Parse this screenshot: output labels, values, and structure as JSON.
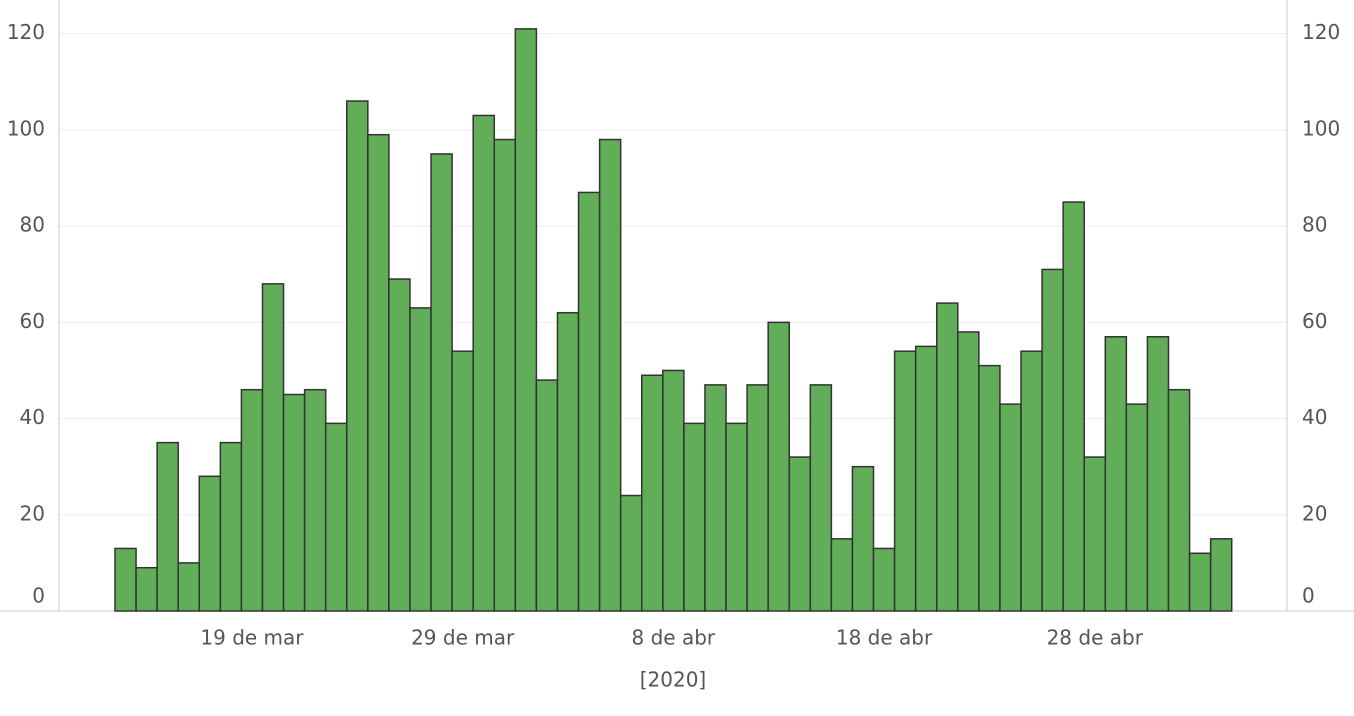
{
  "chart_data": {
    "type": "bar",
    "xlabel": "[2020]",
    "categories": [
      null,
      null,
      null,
      null,
      null,
      null,
      "19 de mar",
      null,
      null,
      null,
      null,
      null,
      null,
      null,
      null,
      null,
      "29 de mar",
      null,
      null,
      null,
      null,
      null,
      null,
      null,
      null,
      null,
      "8 de abr",
      null,
      null,
      null,
      null,
      null,
      null,
      null,
      null,
      null,
      "18 de abr",
      null,
      null,
      null,
      null,
      null,
      null,
      null,
      null,
      null,
      "28 de abr",
      null,
      null,
      null,
      null,
      null,
      null
    ],
    "values": [
      13,
      9,
      35,
      10,
      28,
      35,
      46,
      68,
      45,
      46,
      39,
      106,
      99,
      69,
      63,
      95,
      54,
      103,
      98,
      121,
      48,
      62,
      87,
      98,
      24,
      49,
      50,
      39,
      47,
      39,
      47,
      60,
      32,
      47,
      15,
      30,
      13,
      54,
      55,
      64,
      58,
      51,
      43,
      54,
      71,
      85,
      32,
      57,
      43,
      57,
      46,
      12,
      15
    ],
    "color": "#62ad58",
    "ylim": [
      0,
      127
    ],
    "yticks": [
      0,
      20,
      40,
      60,
      80,
      100,
      120
    ],
    "grid": true
  }
}
